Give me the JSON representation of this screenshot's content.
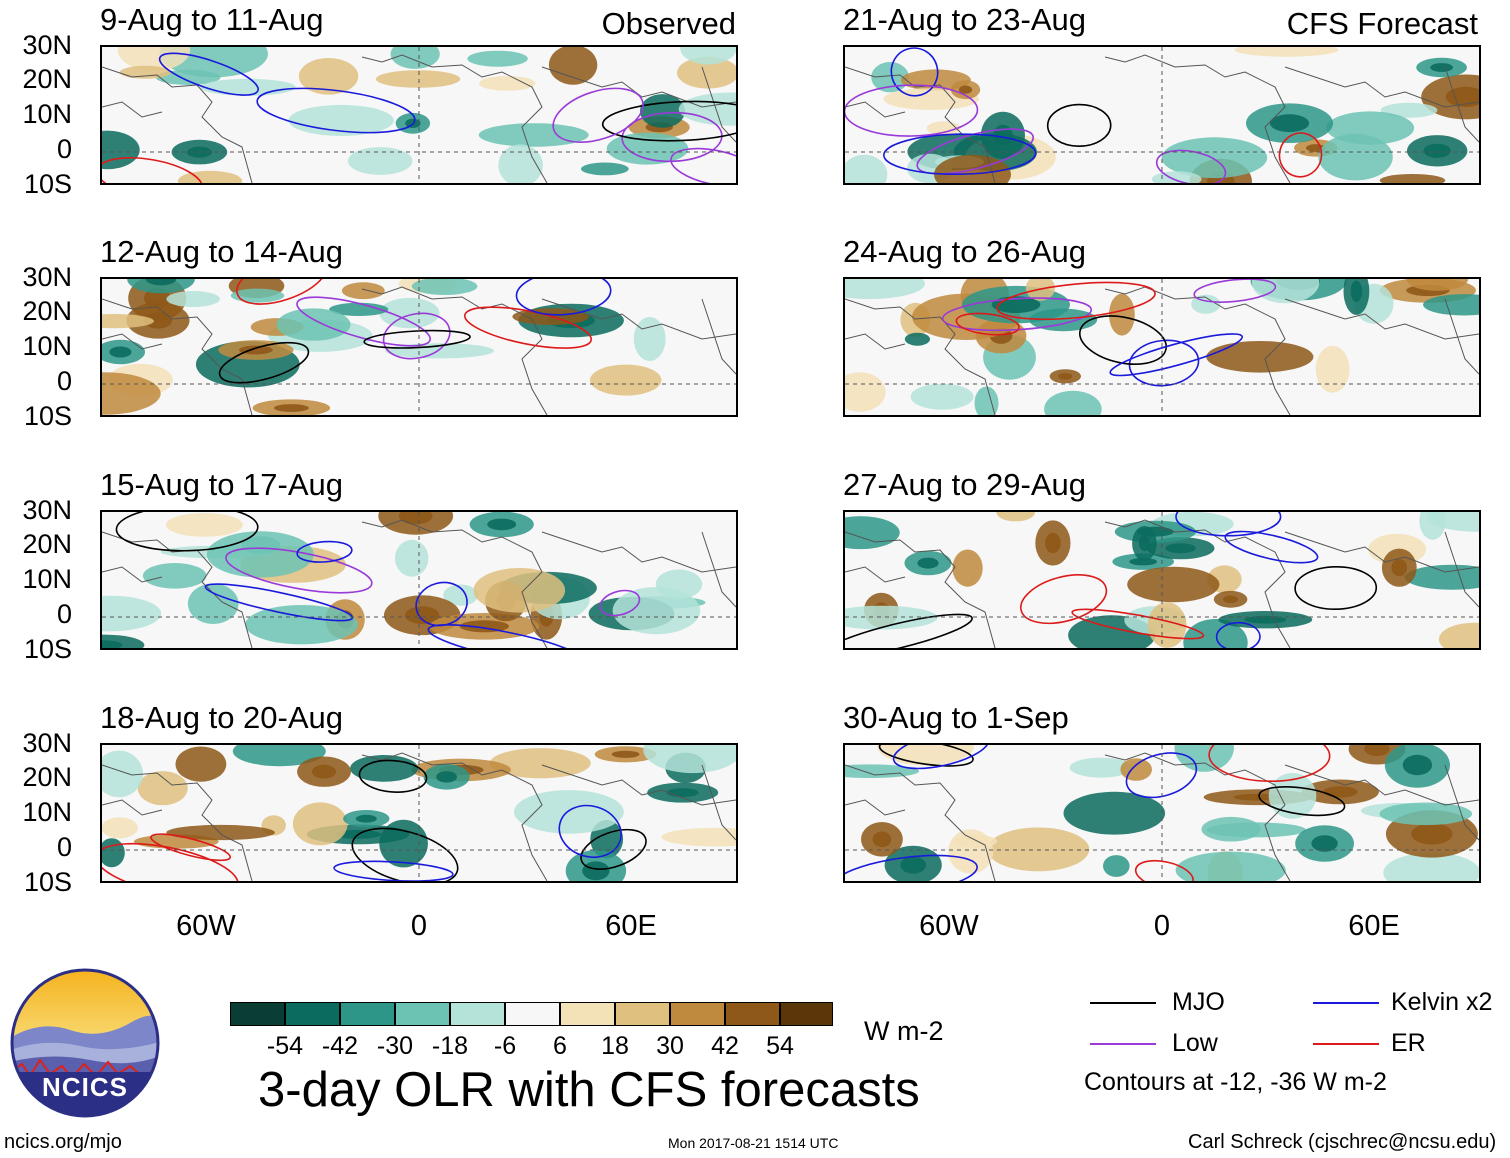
{
  "panels": [
    {
      "title": "9-Aug to 11-Aug",
      "tag": "Observed"
    },
    {
      "title": "12-Aug to 14-Aug",
      "tag": ""
    },
    {
      "title": "15-Aug to 17-Aug",
      "tag": ""
    },
    {
      "title": "18-Aug to 20-Aug",
      "tag": ""
    },
    {
      "title": "21-Aug to 23-Aug",
      "tag": "CFS Forecast"
    },
    {
      "title": "24-Aug to 26-Aug",
      "tag": ""
    },
    {
      "title": "27-Aug to 29-Aug",
      "tag": ""
    },
    {
      "title": "30-Aug to 1-Sep",
      "tag": ""
    }
  ],
  "lat_labels": [
    "30N",
    "20N",
    "10N",
    "0",
    "10S"
  ],
  "lon_labels": [
    "60W",
    "0",
    "60E"
  ],
  "colorbar": {
    "labels": [
      "-54",
      "-42",
      "-30",
      "-18",
      "-6",
      "6",
      "18",
      "30",
      "42",
      "54"
    ],
    "colors": [
      "#0a3d33",
      "#0b6b5e",
      "#2d9688",
      "#6cc3b4",
      "#b4e3d9",
      "#f7f7f7",
      "#f3e1b8",
      "#dfc07f",
      "#bf8a3d",
      "#8e5818",
      "#5a3608"
    ],
    "units": "W m-2"
  },
  "legend": {
    "mjo": "MJO",
    "kelvin": "Kelvin x2",
    "low": "Low",
    "er": "ER",
    "note": "Contours at -12, -36 W m-2",
    "colors": {
      "mjo": "#000000",
      "kelvin": "#1a1adc",
      "low": "#9a3ad8",
      "er": "#dd1a1a"
    }
  },
  "logo_text": "NCICS",
  "title": "3-day OLR with CFS forecasts",
  "footer": {
    "left": "ncics.org/mjo",
    "center": "Mon 2017-08-21 1514 UTC",
    "right": "Carl Schreck (cjschrec@ncsu.edu)"
  }
}
